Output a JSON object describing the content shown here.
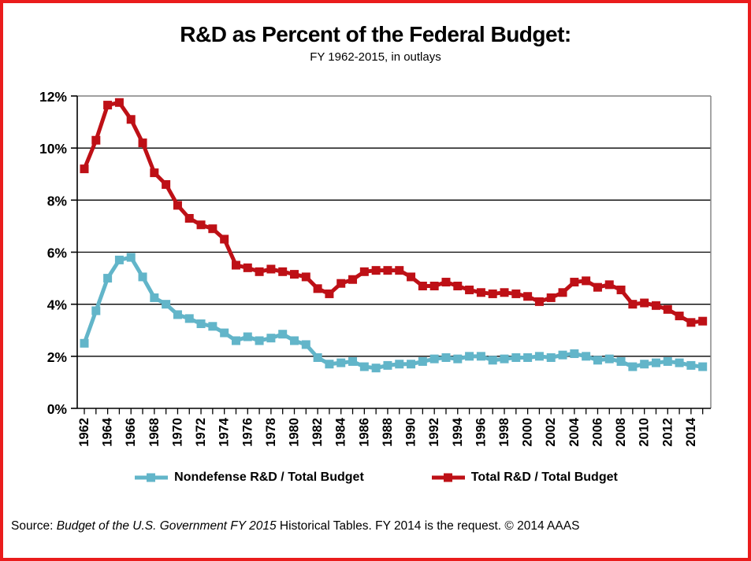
{
  "title": "R&D as Percent of the Federal Budget:",
  "subtitle": "FY 1962-2015, in outlays",
  "source": {
    "prefix": "Source: ",
    "italic": "Budget of the U.S. Government FY 2015",
    "suffix": " Historical Tables. FY 2014 is the request. © 2014 AAAS"
  },
  "colors": {
    "frame": "#ea1c1c",
    "nondefense_series": "#62b5c9",
    "total_series": "#be1016",
    "gridline": "#000000",
    "plot_border": "#808080",
    "text": "#000000"
  },
  "chart_data": {
    "type": "line",
    "title": "R&D as Percent of the Federal Budget:",
    "subtitle": "FY 1962-2015, in outlays",
    "xlabel": "",
    "ylabel": "",
    "ylim": [
      0,
      12
    ],
    "y_ticks": [
      0,
      2,
      4,
      6,
      8,
      10,
      12
    ],
    "y_tick_labels": [
      "0%",
      "2%",
      "4%",
      "6%",
      "8%",
      "10%",
      "12%"
    ],
    "x_tick_labels": [
      "1962",
      "1964",
      "1966",
      "1968",
      "1970",
      "1972",
      "1974",
      "1976",
      "1978",
      "1980",
      "1982",
      "1984",
      "1986",
      "1988",
      "1990",
      "1992",
      "1994",
      "1996",
      "1998",
      "2000",
      "2002",
      "2004",
      "2006",
      "2008",
      "2010",
      "2012",
      "2014"
    ],
    "grid": "horizontal",
    "legend_position": "bottom",
    "marker": "square",
    "x": [
      1962,
      1963,
      1964,
      1965,
      1966,
      1967,
      1968,
      1969,
      1970,
      1971,
      1972,
      1973,
      1974,
      1975,
      1976,
      1977,
      1978,
      1979,
      1980,
      1981,
      1982,
      1983,
      1984,
      1985,
      1986,
      1987,
      1988,
      1989,
      1990,
      1991,
      1992,
      1993,
      1994,
      1995,
      1996,
      1997,
      1998,
      1999,
      2000,
      2001,
      2002,
      2003,
      2004,
      2005,
      2006,
      2007,
      2008,
      2009,
      2010,
      2011,
      2012,
      2013,
      2014,
      2015
    ],
    "series": [
      {
        "name": "Nondefense R&D / Total Budget",
        "color": "#62b5c9",
        "values": [
          2.5,
          3.75,
          5.0,
          5.7,
          5.8,
          5.05,
          4.25,
          4.0,
          3.6,
          3.45,
          3.25,
          3.15,
          2.9,
          2.6,
          2.75,
          2.6,
          2.7,
          2.85,
          2.6,
          2.45,
          1.95,
          1.7,
          1.75,
          1.8,
          1.6,
          1.55,
          1.65,
          1.7,
          1.7,
          1.8,
          1.9,
          1.95,
          1.9,
          2.0,
          2.0,
          1.85,
          1.9,
          1.95,
          1.95,
          2.0,
          1.95,
          2.05,
          2.1,
          2.0,
          1.85,
          1.9,
          1.8,
          1.6,
          1.7,
          1.75,
          1.8,
          1.75,
          1.65,
          1.6
        ]
      },
      {
        "name": "Total R&D / Total Budget",
        "color": "#be1016",
        "values": [
          9.2,
          10.3,
          11.65,
          11.75,
          11.1,
          10.2,
          9.05,
          8.6,
          7.8,
          7.3,
          7.05,
          6.9,
          6.5,
          5.5,
          5.4,
          5.25,
          5.35,
          5.25,
          5.15,
          5.05,
          4.6,
          4.4,
          4.8,
          4.95,
          5.25,
          5.3,
          5.3,
          5.3,
          5.05,
          4.7,
          4.7,
          4.85,
          4.7,
          4.55,
          4.45,
          4.4,
          4.45,
          4.4,
          4.3,
          4.1,
          4.25,
          4.45,
          4.85,
          4.9,
          4.65,
          4.75,
          4.55,
          4.0,
          4.05,
          3.95,
          3.8,
          3.55,
          3.3,
          3.35
        ]
      }
    ]
  }
}
